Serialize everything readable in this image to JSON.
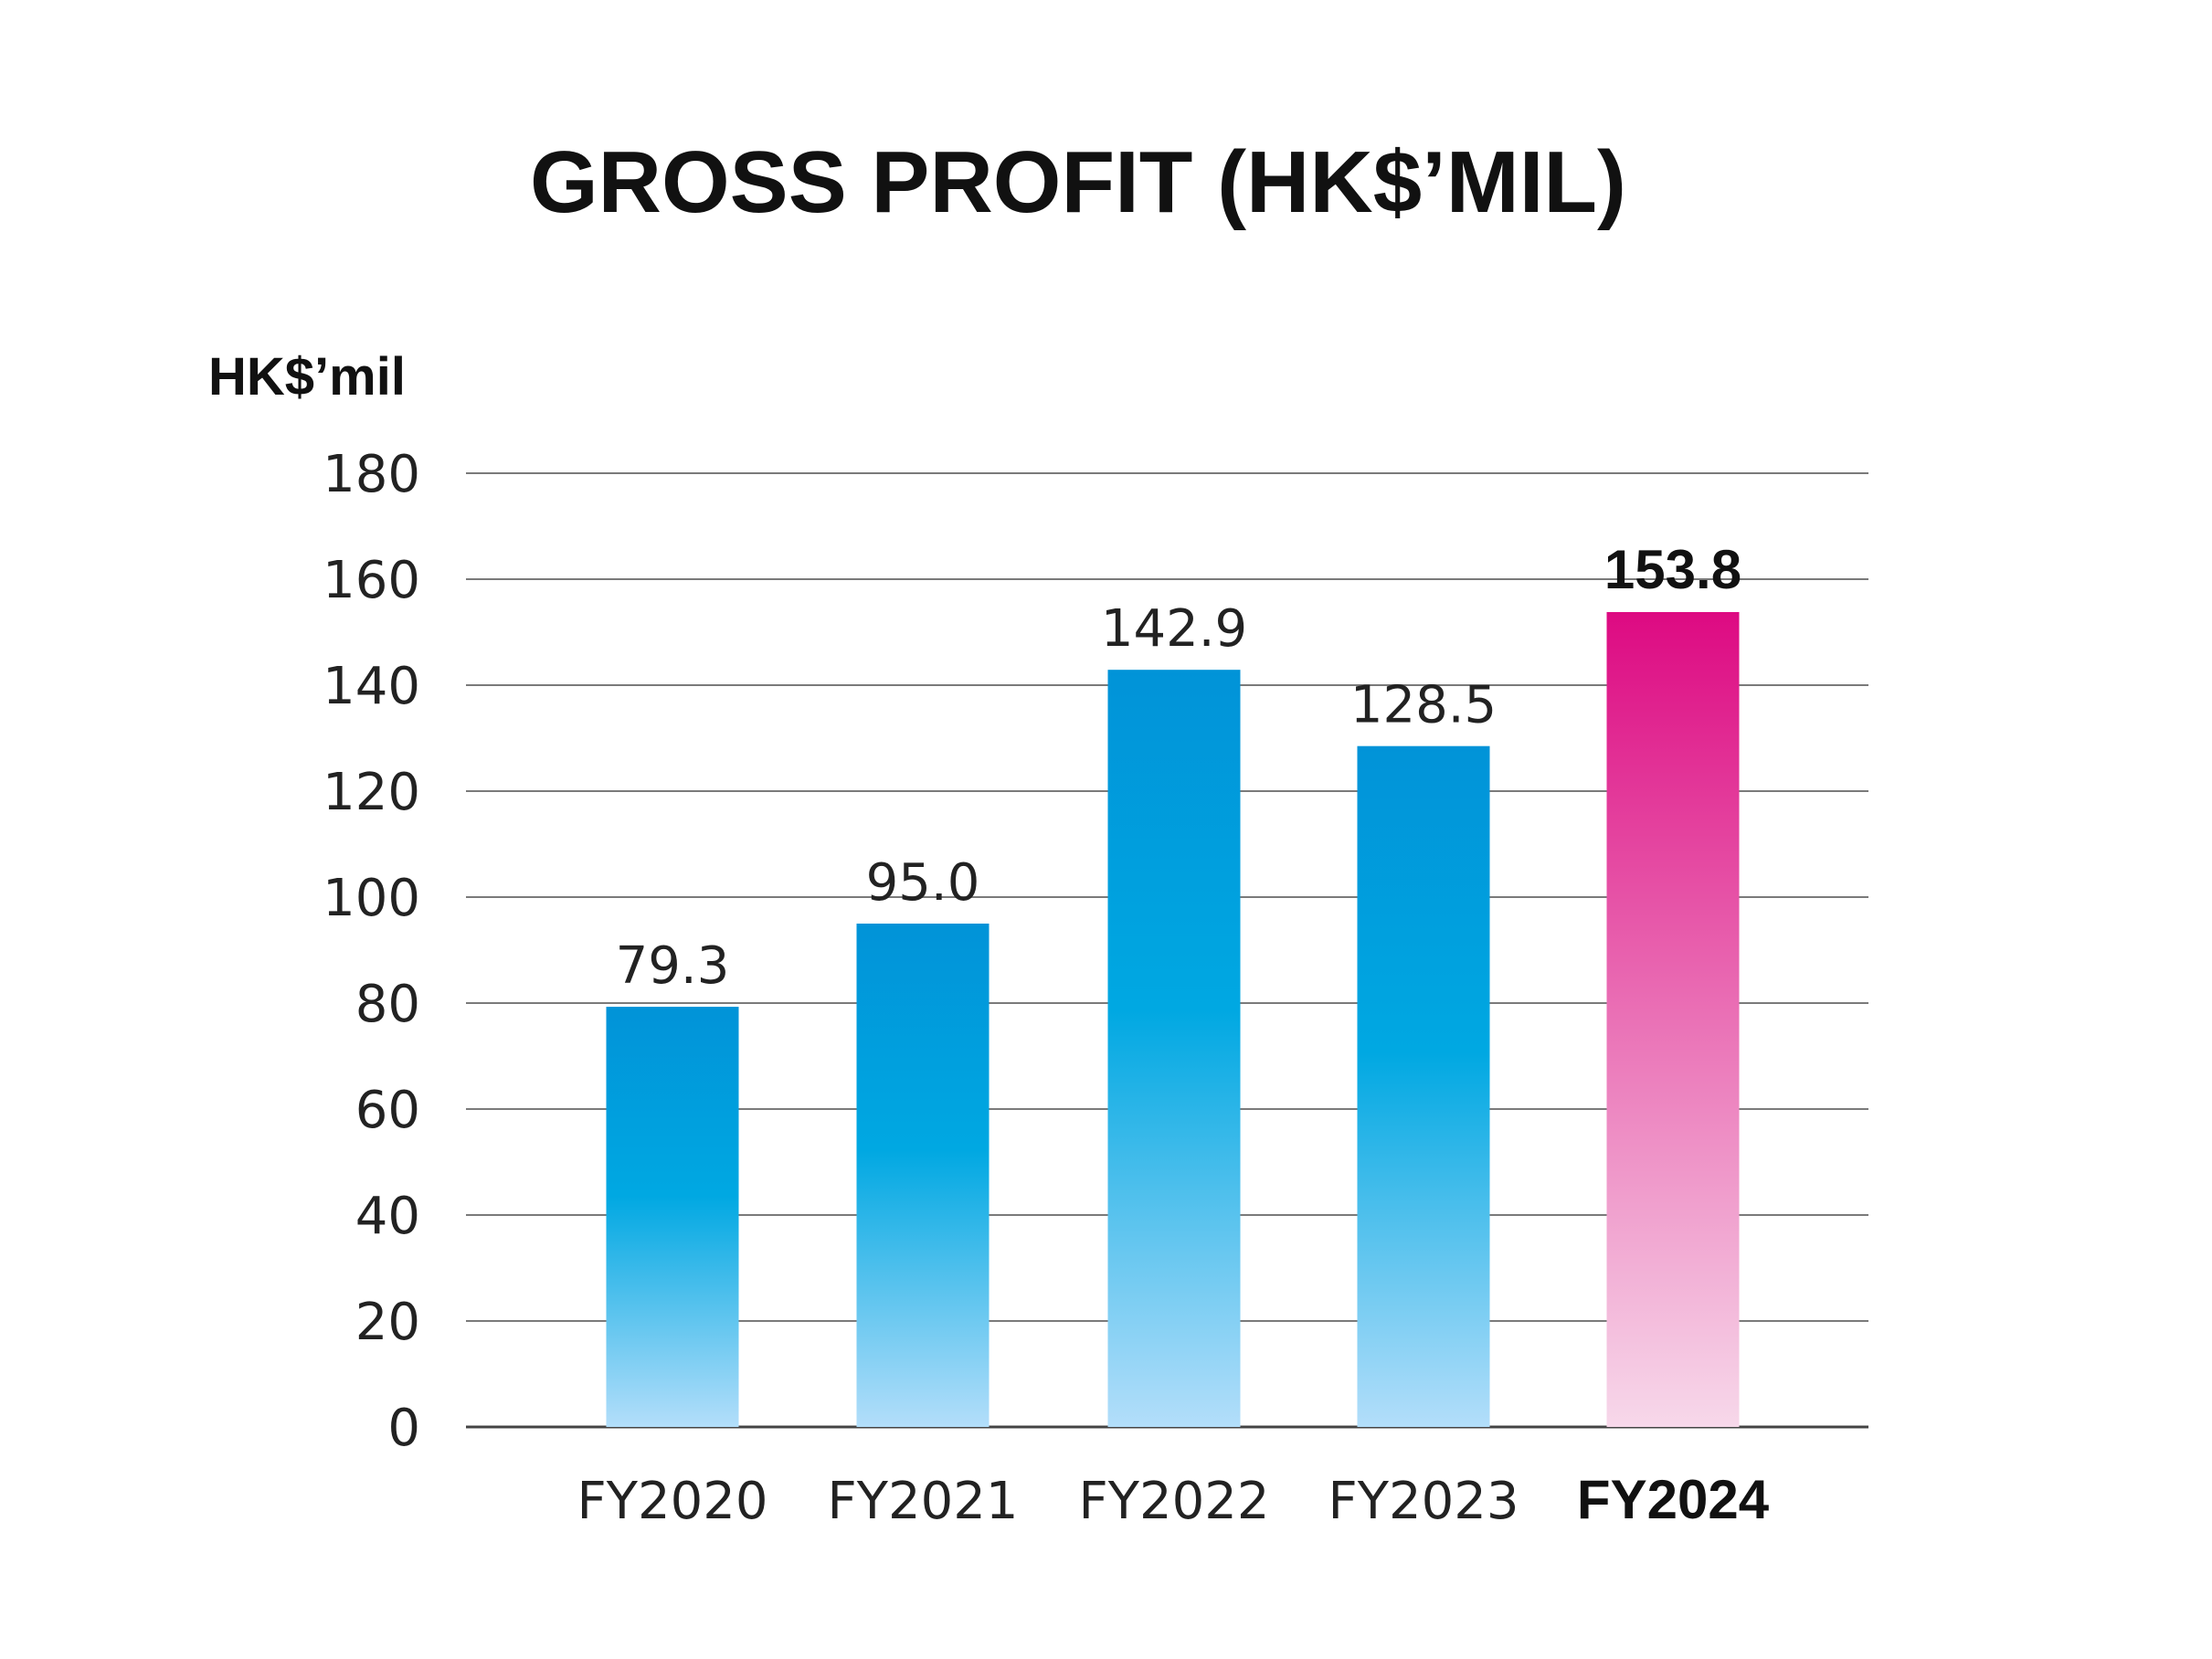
{
  "chart_data": {
    "type": "bar",
    "title": "GROSS PROFIT (HK$’MIL)",
    "ylabel": "HK$’mil",
    "xlabel": "",
    "categories": [
      "FY2020",
      "FY2021",
      "FY2022",
      "FY2023",
      "FY2024"
    ],
    "values": [
      79.3,
      95.0,
      142.9,
      128.5,
      153.8
    ],
    "value_labels": [
      "79.3",
      "95.0",
      "142.9",
      "128.5",
      "153.8"
    ],
    "highlight_index": 4,
    "ylim": [
      0,
      180
    ],
    "yticks": [
      0,
      20,
      40,
      60,
      80,
      100,
      120,
      140,
      160,
      180
    ],
    "grid": true,
    "legend": "none",
    "colors": {
      "bar_top": "#0193d8",
      "bar_mid": "#00a8e2",
      "bar_bottom": "#b3defa",
      "highlight_top": "#dd0a82",
      "highlight_bottom": "#f7d8ea"
    }
  }
}
